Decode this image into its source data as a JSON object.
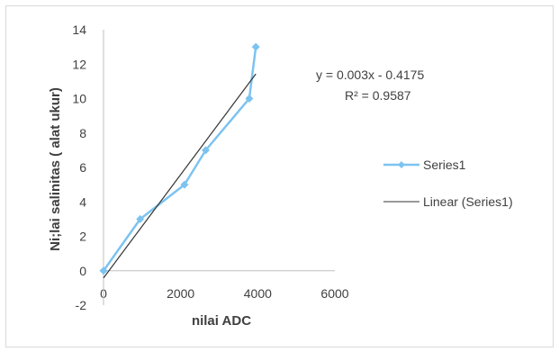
{
  "chart_data": {
    "type": "scatter",
    "xlabel": "nilai ADC",
    "ylabel": "Ni;lai salinitas ( alat ukur)",
    "xlim": [
      0,
      6000
    ],
    "ylim": [
      -2,
      14
    ],
    "xticks": [
      "0",
      "2000",
      "4000",
      "6000"
    ],
    "yticks": [
      "-2",
      "0",
      "2",
      "4",
      "6",
      "8",
      "10",
      "12",
      "14"
    ],
    "grid": false,
    "legend_position": "right",
    "series": [
      {
        "name": "Series1",
        "color": "#7dc3f0",
        "marker": "diamond",
        "x": [
          0,
          950,
          2100,
          2650,
          3780,
          3950
        ],
        "y": [
          0,
          3,
          5,
          7,
          10,
          13
        ]
      }
    ],
    "trendline": {
      "name": "Linear (Series1)",
      "color": "#333333",
      "slope": 0.003,
      "intercept": -0.4175,
      "x_range": [
        0,
        3950
      ],
      "equation": "y = 0.003x - 0.4175",
      "r_squared": "R² = 0.9587"
    }
  }
}
